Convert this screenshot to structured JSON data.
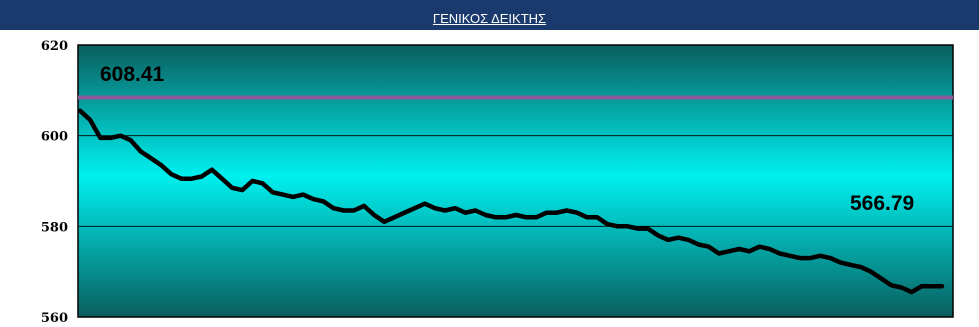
{
  "header": {
    "title": "ΓΕΝΙΚΟΣ  ΔΕΙΚΤΗΣ"
  },
  "colors": {
    "header_bg": "#1a3a6e",
    "gradient_top": "#0a5e5e",
    "gradient_mid": "#00f0f0",
    "gradient_bottom": "#0a5e5e",
    "reference_line": "#8a5a9a",
    "series_line": "#000000"
  },
  "chart_data": {
    "type": "line",
    "title": "ΓΕΝΙΚΟΣ  ΔΕΙΚΤΗΣ",
    "xlabel": "",
    "ylabel": "",
    "ylim": [
      560,
      620
    ],
    "yticks": [
      "620",
      "600",
      "580",
      "560"
    ],
    "grid": true,
    "legend": "none",
    "reference_value": 608.41,
    "reference_label": "608.41",
    "end_label": "566.79",
    "series": [
      {
        "values": [
          605.5,
          603.5,
          599.5,
          599.5,
          600.0,
          599.0,
          596.5,
          595.0,
          593.5,
          591.5,
          590.5,
          590.5,
          591.0,
          592.5,
          590.5,
          588.5,
          588.0,
          590.0,
          589.5,
          587.5,
          587.0,
          586.5,
          587.0,
          586.0,
          585.5,
          584.0,
          583.5,
          583.5,
          584.5,
          582.5,
          581.0,
          582.0,
          583.0,
          584.0,
          585.0,
          584.0,
          583.5,
          584.0,
          583.0,
          583.5,
          582.5,
          582.0,
          582.0,
          582.5,
          582.0,
          582.0,
          583.0,
          583.0,
          583.5,
          583.0,
          582.0,
          582.0,
          580.5,
          580.0,
          580.0,
          579.5,
          579.5,
          578.0,
          577.0,
          577.5,
          577.0,
          576.0,
          575.5,
          574.0,
          574.5,
          575.0,
          574.5,
          575.5,
          575.0,
          574.0,
          573.5,
          573.0,
          573.0,
          573.5,
          573.0,
          572.0,
          571.5,
          571.0,
          570.0,
          568.5,
          567.0,
          566.5,
          565.5,
          566.8,
          566.8,
          566.8
        ]
      }
    ]
  }
}
